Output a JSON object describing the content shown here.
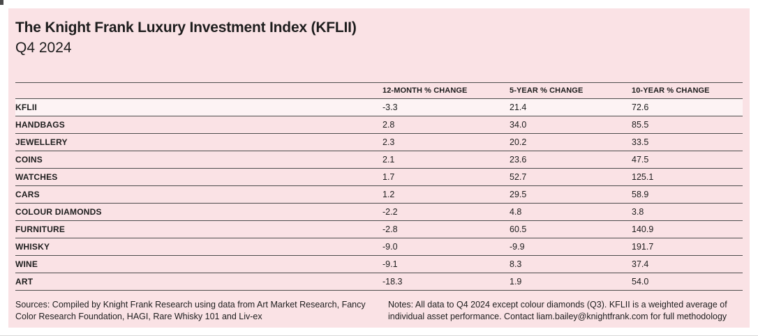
{
  "header": {
    "title": "The Knight Frank Luxury Investment Index (KFLII)",
    "subtitle": "Q4 2024"
  },
  "chart_data": {
    "type": "table",
    "title": "The Knight Frank Luxury Investment Index (KFLII)",
    "subtitle": "Q4 2024",
    "columns": [
      "12-MONTH % CHANGE",
      "5-YEAR % CHANGE",
      "10-YEAR % CHANGE"
    ],
    "rows": [
      {
        "label": "KFLII",
        "values": [
          "-3.3",
          "21.4",
          "72.6"
        ],
        "highlight": true
      },
      {
        "label": "HANDBAGS",
        "values": [
          "2.8",
          "34.0",
          "85.5"
        ],
        "highlight": false
      },
      {
        "label": "JEWELLERY",
        "values": [
          "2.3",
          "20.2",
          "33.5"
        ],
        "highlight": false
      },
      {
        "label": "COINS",
        "values": [
          "2.1",
          "23.6",
          "47.5"
        ],
        "highlight": false
      },
      {
        "label": "WATCHES",
        "values": [
          "1.7",
          "52.7",
          "125.1"
        ],
        "highlight": false
      },
      {
        "label": "CARS",
        "values": [
          "1.2",
          "29.5",
          "58.9"
        ],
        "highlight": false
      },
      {
        "label": "COLOUR DIAMONDS",
        "values": [
          "-2.2",
          "4.8",
          "3.8"
        ],
        "highlight": false
      },
      {
        "label": "FURNITURE",
        "values": [
          "-2.8",
          "60.5",
          "140.9"
        ],
        "highlight": false
      },
      {
        "label": "WHISKY",
        "values": [
          "-9.0",
          "-9.9",
          "191.7"
        ],
        "highlight": false
      },
      {
        "label": "WINE",
        "values": [
          "-9.1",
          "8.3",
          "37.4"
        ],
        "highlight": false
      },
      {
        "label": "ART",
        "values": [
          "-18.3",
          "1.9",
          "54.0"
        ],
        "highlight": false
      }
    ]
  },
  "footer": {
    "sources": "Sources: Compiled by Knight Frank Research using data from Art Market Research, Fancy Color Research Foundation, HAGI, Rare Whisky 101 and Liv-ex",
    "notes": "Notes: All data to Q4 2024 except colour diamonds (Q3). KFLII is a weighted average of individual asset performance. Contact liam.bailey@knightfrank.com for full methodology"
  },
  "colors": {
    "card_background": "#fae2e5",
    "highlight_row_background": "#fdf3f4",
    "rule_line": "#4c4c4c",
    "text": "#1d1d1d"
  }
}
